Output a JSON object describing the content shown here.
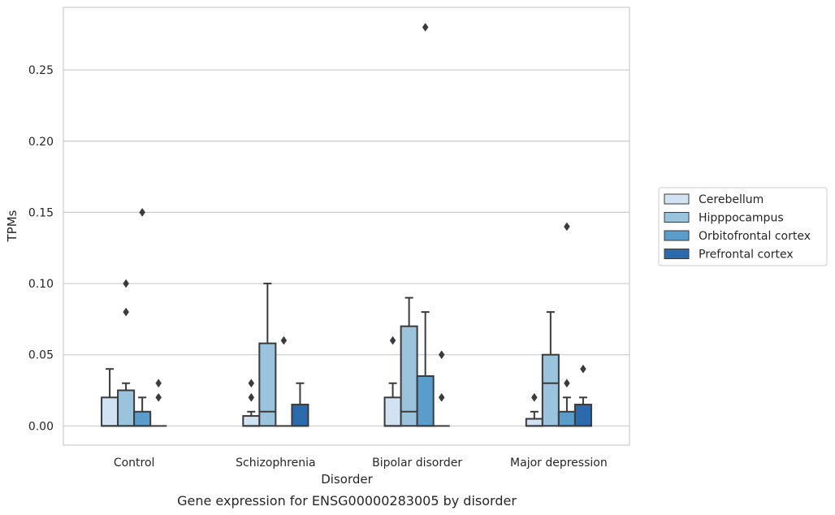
{
  "chart_data": {
    "type": "box",
    "title": "",
    "caption": "Gene expression for ENSG00000283005 by disorder",
    "xlabel": "Disorder",
    "ylabel": "TPMs",
    "ylim": [
      -0.0135,
      0.294
    ],
    "yticks": [
      0.0,
      0.05,
      0.1,
      0.15,
      0.2,
      0.25
    ],
    "ytick_labels": [
      "0.00",
      "0.05",
      "0.10",
      "0.15",
      "0.20",
      "0.25"
    ],
    "grid": "horizontal",
    "legend_position": "right",
    "categories": [
      "Control",
      "Schizophrenia",
      "Bipolar disorder",
      "Major depression"
    ],
    "series": [
      {
        "name": "Cerebellum",
        "color": "#d1e2f2",
        "boxes": [
          {
            "q1": 0.0,
            "median": 0.0,
            "q3": 0.02,
            "whislo": 0.0,
            "whishi": 0.04,
            "fliers": []
          },
          {
            "q1": 0.0,
            "median": 0.0,
            "q3": 0.007,
            "whislo": 0.0,
            "whishi": 0.01,
            "fliers": [
              0.02,
              0.03
            ]
          },
          {
            "q1": 0.0,
            "median": 0.0,
            "q3": 0.02,
            "whislo": 0.0,
            "whishi": 0.03,
            "fliers": [
              0.06
            ]
          },
          {
            "q1": 0.0,
            "median": 0.0,
            "q3": 0.005,
            "whislo": 0.0,
            "whishi": 0.01,
            "fliers": [
              0.02
            ]
          }
        ]
      },
      {
        "name": "Hipppocampus",
        "color": "#9ac3dd",
        "boxes": [
          {
            "q1": 0.0,
            "median": 0.0,
            "q3": 0.025,
            "whislo": 0.0,
            "whishi": 0.03,
            "fliers": [
              0.08,
              0.1
            ]
          },
          {
            "q1": 0.0,
            "median": 0.01,
            "q3": 0.058,
            "whislo": 0.0,
            "whishi": 0.1,
            "fliers": []
          },
          {
            "q1": 0.0,
            "median": 0.01,
            "q3": 0.07,
            "whislo": 0.0,
            "whishi": 0.09,
            "fliers": []
          },
          {
            "q1": 0.0,
            "median": 0.03,
            "q3": 0.05,
            "whislo": 0.0,
            "whishi": 0.08,
            "fliers": []
          }
        ]
      },
      {
        "name": "Orbitofrontal cortex",
        "color": "#5a9dcb",
        "boxes": [
          {
            "q1": 0.0,
            "median": 0.0,
            "q3": 0.01,
            "whislo": 0.0,
            "whishi": 0.02,
            "fliers": [
              0.15
            ]
          },
          {
            "q1": 0.0,
            "median": 0.0,
            "q3": 0.0,
            "whislo": 0.0,
            "whishi": 0.0,
            "fliers": [
              0.06
            ]
          },
          {
            "q1": 0.0,
            "median": 0.0,
            "q3": 0.035,
            "whislo": 0.0,
            "whishi": 0.08,
            "fliers": [
              0.28
            ]
          },
          {
            "q1": 0.0,
            "median": 0.0,
            "q3": 0.01,
            "whislo": 0.0,
            "whishi": 0.02,
            "fliers": [
              0.03,
              0.14
            ]
          }
        ]
      },
      {
        "name": "Prefrontal cortex",
        "color": "#2a6aad",
        "boxes": [
          {
            "q1": 0.0,
            "median": 0.0,
            "q3": 0.0,
            "whislo": 0.0,
            "whishi": 0.0,
            "fliers": [
              0.02,
              0.03
            ]
          },
          {
            "q1": 0.0,
            "median": 0.0,
            "q3": 0.015,
            "whislo": 0.0,
            "whishi": 0.03,
            "fliers": []
          },
          {
            "q1": 0.0,
            "median": 0.0,
            "q3": 0.0,
            "whislo": 0.0,
            "whishi": 0.0,
            "fliers": [
              0.02,
              0.05
            ]
          },
          {
            "q1": 0.0,
            "median": 0.0,
            "q3": 0.015,
            "whislo": 0.0,
            "whishi": 0.02,
            "fliers": [
              0.04
            ]
          }
        ]
      }
    ],
    "colors": {
      "box_edge": "#3b3b3b",
      "grid": "#cccccc",
      "frame": "#cccccc",
      "text": "#262626"
    }
  }
}
